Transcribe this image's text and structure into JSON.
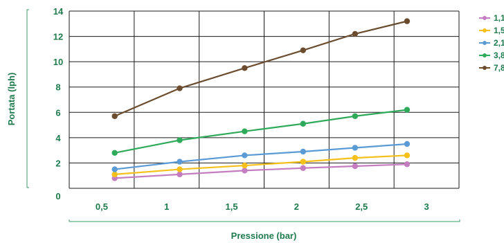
{
  "chart_data": {
    "type": "line",
    "xlabel": "Pressione (bar)",
    "ylabel": "Portata (lph)",
    "x_tick_labels": [
      "0,5",
      "1",
      "1,5",
      "2",
      "2,5",
      "3"
    ],
    "y_tick_labels": [
      "0",
      "2",
      "4",
      "6",
      "8",
      "10",
      "12",
      "14"
    ],
    "x_ticks": [
      0.5,
      1,
      1.5,
      2,
      2.5,
      3
    ],
    "y_ticks": [
      0,
      2,
      4,
      6,
      8,
      10,
      12,
      14
    ],
    "xlim": [
      0.25,
      3.25
    ],
    "ylim": [
      0,
      14
    ],
    "grid": true,
    "legend_position": "right",
    "x": [
      0.6,
      1.1,
      1.6,
      2.05,
      2.45,
      2.85
    ],
    "series": [
      {
        "name": "1,1",
        "color": "#c47dc0",
        "values": [
          0.8,
          1.1,
          1.4,
          1.6,
          1.75,
          1.9
        ]
      },
      {
        "name": "1,5",
        "color": "#f5c01a",
        "values": [
          1.1,
          1.5,
          1.8,
          2.1,
          2.4,
          2.6
        ]
      },
      {
        "name": "2,1",
        "color": "#5b9bd5",
        "values": [
          1.5,
          2.1,
          2.6,
          2.9,
          3.2,
          3.5
        ]
      },
      {
        "name": "3,8",
        "color": "#2eaa5a",
        "values": [
          2.8,
          3.8,
          4.5,
          5.1,
          5.7,
          6.2
        ]
      },
      {
        "name": "7,8",
        "color": "#6b4c2f",
        "values": [
          5.7,
          7.9,
          9.5,
          10.9,
          12.2,
          13.2
        ]
      }
    ]
  }
}
